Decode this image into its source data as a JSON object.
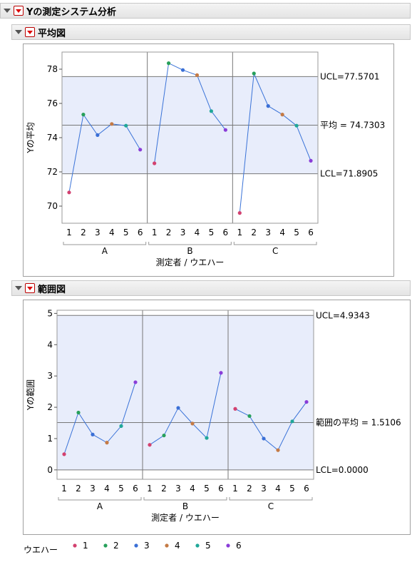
{
  "report": {
    "title": "Yの測定システム分析"
  },
  "sections": [
    {
      "title": "平均図"
    },
    {
      "title": "範囲図"
    }
  ],
  "colors": {
    "band": "#e8edfb",
    "line": "#3a73d8",
    "wafer": {
      "1": "#d3416f",
      "2": "#27a05a",
      "3": "#3a6fd6",
      "4": "#c47a45",
      "5": "#20a799",
      "6": "#8a3dd8"
    }
  },
  "legend": {
    "title": "ウエハー",
    "items": [
      "1",
      "2",
      "3",
      "4",
      "5",
      "6"
    ]
  },
  "chart_data": [
    {
      "type": "line",
      "title": "平均図",
      "xlabel": "測定者 / ウエハー",
      "ylabel": "Yの平均",
      "groups": [
        "A",
        "B",
        "C"
      ],
      "x_ticks": [
        "1",
        "2",
        "3",
        "4",
        "5",
        "6"
      ],
      "ylim": [
        69,
        79
      ],
      "y_ticks": [
        70,
        72,
        74,
        76,
        78
      ],
      "series": [
        {
          "group": "A",
          "values": [
            70.8,
            75.35,
            74.15,
            74.8,
            74.7,
            73.3
          ]
        },
        {
          "group": "B",
          "values": [
            72.5,
            78.35,
            77.95,
            77.65,
            75.55,
            74.45
          ]
        },
        {
          "group": "C",
          "values": [
            69.6,
            77.75,
            75.85,
            75.35,
            74.7,
            72.65
          ]
        }
      ],
      "limits": {
        "ucl": 77.5701,
        "center": 74.7303,
        "lcl": 71.8905
      },
      "limit_labels": {
        "ucl": "UCL=77.5701",
        "center": "平均 = 74.7303",
        "lcl": "LCL=71.8905"
      }
    },
    {
      "type": "line",
      "title": "範囲図",
      "xlabel": "測定者 / ウエハー",
      "ylabel": "Yの範囲",
      "groups": [
        "A",
        "B",
        "C"
      ],
      "x_ticks": [
        "1",
        "2",
        "3",
        "4",
        "5",
        "6"
      ],
      "ylim": [
        -0.3,
        5.1
      ],
      "y_ticks": [
        0,
        1,
        2,
        3,
        4,
        5
      ],
      "series": [
        {
          "group": "A",
          "values": [
            0.5,
            1.83,
            1.13,
            0.87,
            1.4,
            2.8
          ]
        },
        {
          "group": "B",
          "values": [
            0.8,
            1.1,
            1.98,
            1.48,
            1.02,
            3.1
          ]
        },
        {
          "group": "C",
          "values": [
            1.95,
            1.72,
            1.0,
            0.63,
            1.55,
            2.17
          ]
        }
      ],
      "limits": {
        "ucl": 4.9343,
        "center": 1.5106,
        "lcl": 0.0
      },
      "limit_labels": {
        "ucl": "UCL=4.9343",
        "center": "範囲の平均 = 1.5106",
        "lcl": "LCL=0.0000"
      }
    }
  ]
}
